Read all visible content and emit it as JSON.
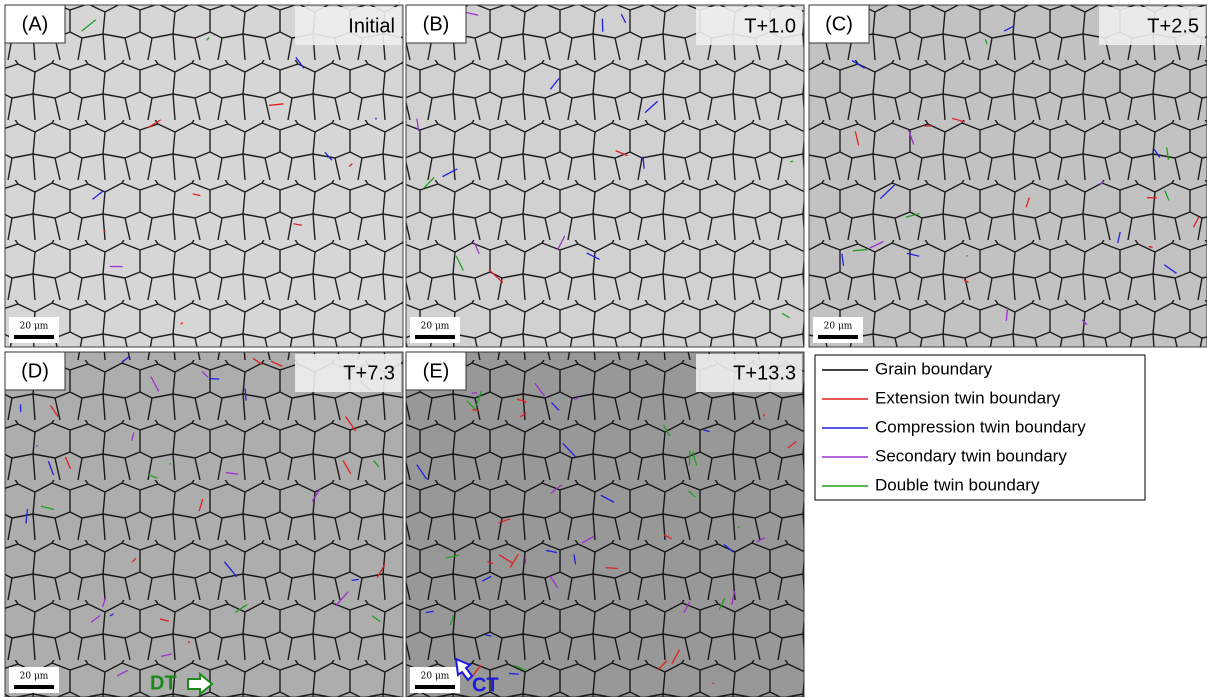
{
  "panels": [
    {
      "label": "(A)",
      "time": "Initial",
      "scale_bar": "20 μm",
      "darkness": 0.15
    },
    {
      "label": "(B)",
      "time": "T+1.0",
      "scale_bar": "20 μm",
      "darkness": 0.2
    },
    {
      "label": "(C)",
      "time": "T+2.5",
      "scale_bar": "20 μm",
      "darkness": 0.35
    },
    {
      "label": "(D)",
      "time": "T+7.3",
      "scale_bar": "20 μm",
      "darkness": 0.55
    },
    {
      "label": "(E)",
      "time": "T+13.3",
      "scale_bar": "20 μm",
      "darkness": 0.75
    }
  ],
  "annotations": [
    {
      "text": "DT",
      "color": "#1a8a1a"
    },
    {
      "text": "CT",
      "color": "#1a1ae0"
    }
  ],
  "legend": [
    {
      "label": "Grain boundary",
      "color": "#000000"
    },
    {
      "label": "Extension twin boundary",
      "color": "#e02020"
    },
    {
      "label": "Compression twin boundary",
      "color": "#2020e0"
    },
    {
      "label": "Secondary twin boundary",
      "color": "#a030d0"
    },
    {
      "label": "Double twin boundary",
      "color": "#20a020"
    }
  ]
}
